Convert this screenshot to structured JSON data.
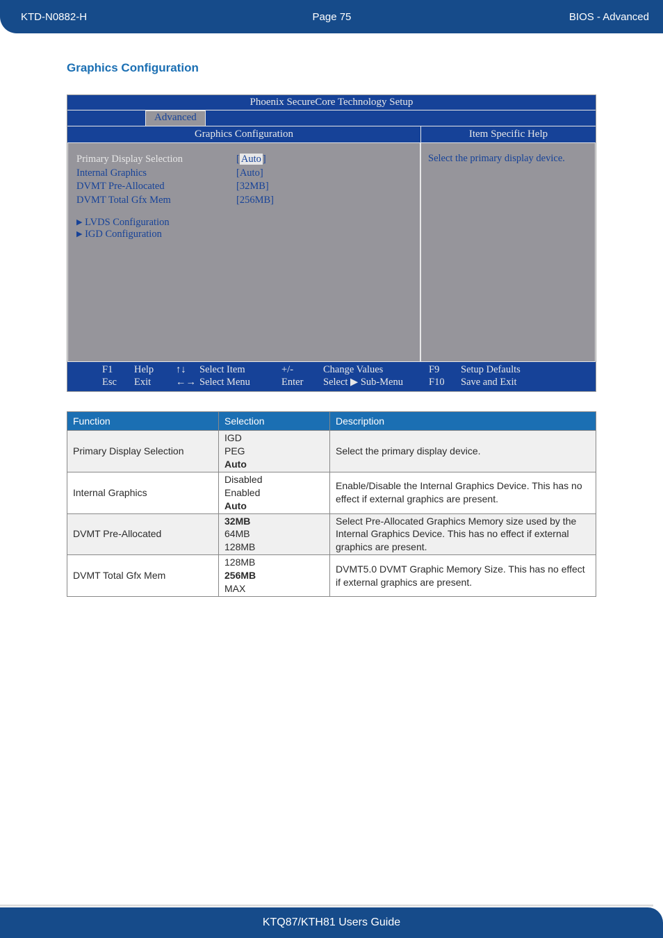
{
  "header": {
    "doc_id": "KTD-N0882-H",
    "page_label": "Page 75",
    "section": "BIOS  - Advanced",
    "bg_color": "#164b8a"
  },
  "section_title": "Graphics Configuration",
  "bios": {
    "title": "Phoenix SecureCore Technology Setup",
    "active_tab": "Advanced",
    "left_heading": "Graphics Configuration",
    "right_heading": "Item Specific Help",
    "help_text": "Select the primary display device.",
    "bg_color": "#164298",
    "panel_color": "#96959b",
    "text_color": "#e7e7e7",
    "items": [
      {
        "label": "Primary Display Selection",
        "value": "[Auto]",
        "selected": true
      },
      {
        "label": "Internal Graphics",
        "value": "[Auto]"
      },
      {
        "label": "DVMT Pre-Allocated",
        "value": "[32MB]"
      },
      {
        "label": "DVMT Total Gfx Mem",
        "value": "[256MB]"
      }
    ],
    "submenus": [
      "LVDS Configuration",
      "IGD Configuration"
    ],
    "footer": {
      "r1": [
        "F1",
        "Help",
        "↑↓",
        "Select Item",
        "+/-",
        "Change Values",
        "F9",
        "Setup Defaults"
      ],
      "r2": [
        "Esc",
        "Exit",
        "←→",
        "Select Menu",
        "Enter",
        "Select ▶ Sub-Menu",
        "F10",
        "Save and Exit"
      ]
    }
  },
  "table": {
    "header_bg": "#1b6fb3",
    "columns": [
      "Function",
      "Selection",
      "Description"
    ],
    "rows": [
      {
        "fn": "Primary Display Selection",
        "sel_lines": [
          "IGD",
          "PEG",
          "<b>Auto</b>"
        ],
        "desc": "Select the primary display device."
      },
      {
        "fn": "Internal Graphics",
        "sel_lines": [
          "Disabled",
          "Enabled",
          "<b>Auto</b>"
        ],
        "desc": "Enable/Disable the Internal Graphics Device. This has no effect if external graphics are present."
      },
      {
        "fn": "DVMT Pre-Allocated",
        "sel_lines": [
          "<b>32MB</b>",
          "64MB",
          "128MB"
        ],
        "desc": "Select Pre-Allocated Graphics Memory size used by the Internal Graphics Device. This has no effect if external graphics are present."
      },
      {
        "fn": "DVMT Total Gfx Mem",
        "sel_lines": [
          "128MB",
          "<b>256MB</b>",
          "MAX"
        ],
        "desc": "DVMT5.0 DVMT Graphic Memory Size. This has no effect if external graphics are present."
      }
    ]
  },
  "footer_text": "KTQ87/KTH81 Users Guide"
}
